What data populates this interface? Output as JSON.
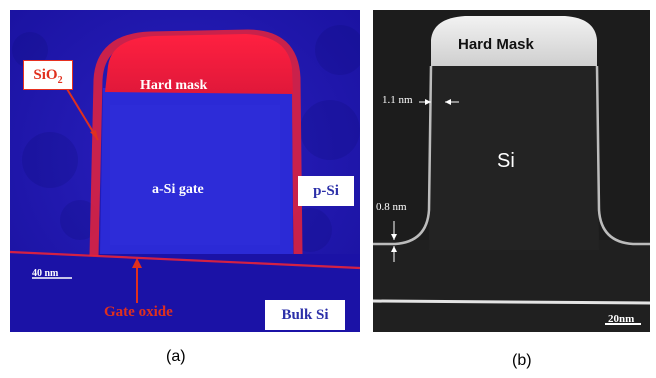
{
  "panel_a": {
    "sio2_label": "SiO",
    "sio2_subscript": "2",
    "hard_mask_label": "Hard mask",
    "gate_label": "a-Si gate",
    "substrate_label": "p-Si",
    "scale_bar_label": "40 nm",
    "gate_oxide_label": "Gate oxide",
    "bulk_label": "Bulk Si",
    "caption": "(a)"
  },
  "panel_b": {
    "hard_mask_label": "Hard Mask",
    "oxide_thickness_top": "1.1 nm",
    "material_label": "Si",
    "oxide_thickness_bottom": "0.8 nm",
    "scale_bar_label": "20nm",
    "caption": "(b)"
  },
  "colors": {
    "panel_a_background": "#1e14a8",
    "panel_a_oxide": "#e8233a",
    "panel_b_background": "#1c1c1c"
  }
}
